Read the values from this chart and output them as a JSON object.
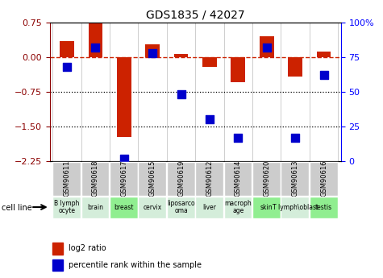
{
  "title": "GDS1835 / 42027",
  "samples": [
    "GSM90611",
    "GSM90618",
    "GSM90617",
    "GSM90615",
    "GSM90619",
    "GSM90612",
    "GSM90614",
    "GSM90620",
    "GSM90613",
    "GSM90616"
  ],
  "cell_line_colors": [
    "#d4edda",
    "#d4edda",
    "#90EE90",
    "#d4edda",
    "#d4edda",
    "#d4edda",
    "#d4edda",
    "#90EE90",
    "#d4edda",
    "#90EE90"
  ],
  "log2_ratio": [
    0.35,
    0.75,
    -1.72,
    0.27,
    0.07,
    -0.22,
    -0.55,
    0.45,
    -0.42,
    0.12
  ],
  "percentile_rank": [
    68,
    82,
    2,
    78,
    48,
    30,
    17,
    82,
    17,
    62
  ],
  "ylim_left": [
    -2.25,
    0.75
  ],
  "ylim_right": [
    0,
    100
  ],
  "left_yticks": [
    0.75,
    0,
    -0.75,
    -1.5,
    -2.25
  ],
  "right_yticks": [
    100,
    75,
    50,
    25,
    0
  ],
  "hlines_dotted": [
    -0.75,
    -1.5
  ],
  "bar_color": "#cc2200",
  "dot_color": "#0000cc",
  "hline_dash_color": "#cc2200",
  "bar_width": 0.5,
  "dot_size": 55
}
